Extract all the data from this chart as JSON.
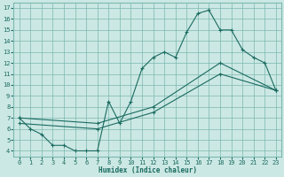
{
  "xlabel": "Humidex (Indice chaleur)",
  "bg_color": "#cce8e4",
  "grid_color": "#7ab8b0",
  "line_color": "#1a6b60",
  "xlim": [
    -0.5,
    23.5
  ],
  "ylim": [
    3.5,
    17.5
  ],
  "xticks": [
    0,
    1,
    2,
    3,
    4,
    5,
    6,
    7,
    8,
    9,
    10,
    11,
    12,
    13,
    14,
    15,
    16,
    17,
    18,
    19,
    20,
    21,
    22,
    23
  ],
  "yticks": [
    4,
    5,
    6,
    7,
    8,
    9,
    10,
    11,
    12,
    13,
    14,
    15,
    16,
    17
  ],
  "line1_x": [
    0,
    1,
    2,
    3,
    4,
    5,
    6,
    7,
    8,
    9,
    10,
    11,
    12,
    13,
    14,
    15,
    16,
    17,
    18,
    19,
    20,
    21,
    22,
    23
  ],
  "line1_y": [
    7.0,
    6.0,
    5.5,
    4.5,
    4.5,
    4.0,
    4.0,
    4.0,
    8.5,
    6.5,
    8.5,
    11.5,
    12.5,
    13.0,
    12.5,
    14.8,
    16.5,
    16.8,
    15.0,
    15.0,
    13.2,
    12.5,
    12.0,
    9.5
  ],
  "line2_x": [
    0,
    7,
    12,
    18,
    23
  ],
  "line2_y": [
    7.0,
    6.5,
    8.0,
    12.0,
    9.5
  ],
  "line3_x": [
    0,
    7,
    12,
    18,
    23
  ],
  "line3_y": [
    6.5,
    6.0,
    7.5,
    11.0,
    9.5
  ]
}
